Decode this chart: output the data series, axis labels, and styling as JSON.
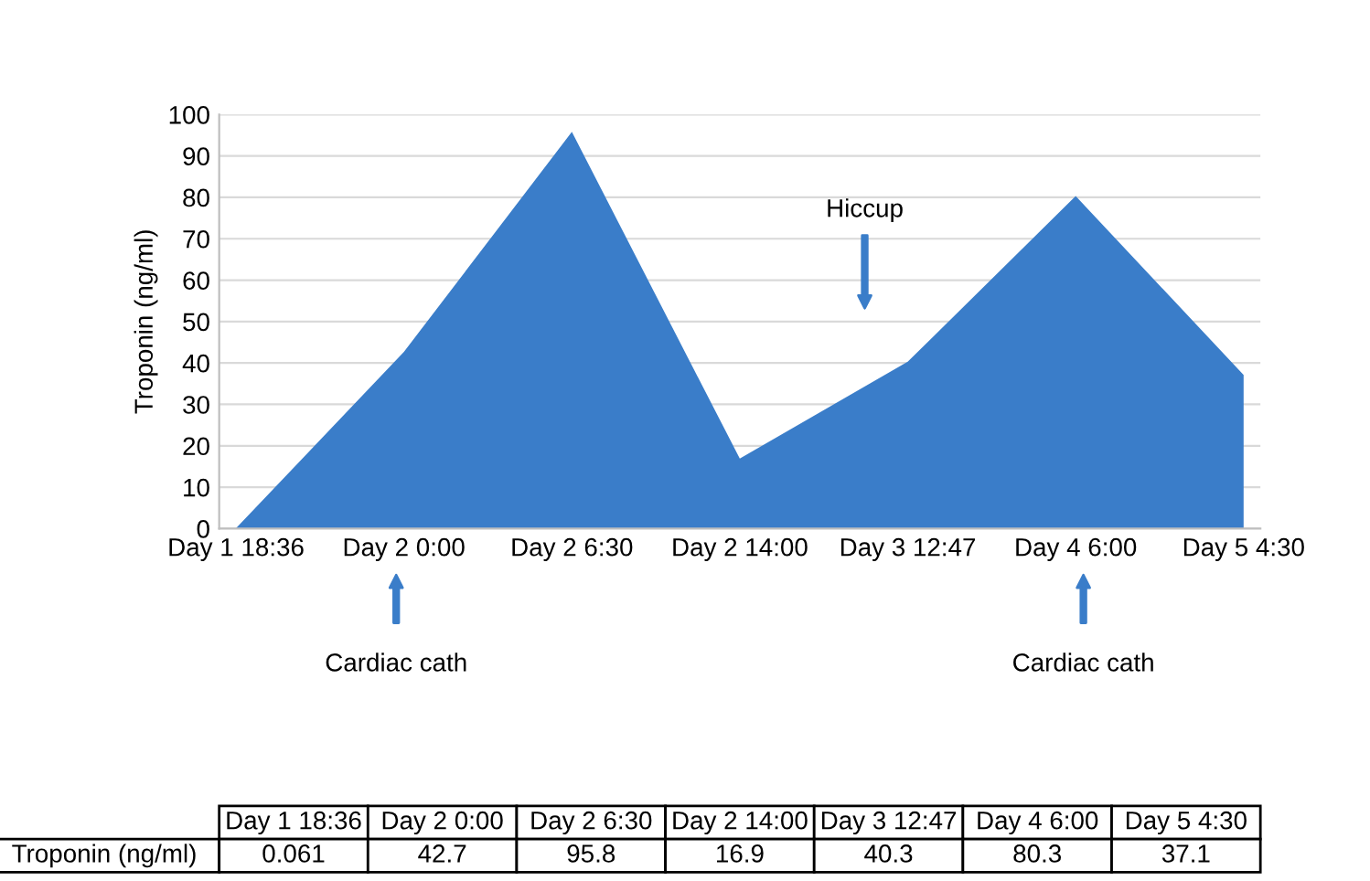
{
  "chart_data": {
    "type": "area",
    "ylabel": "Troponin (ng/ml)",
    "categories": [
      "Day 1 18:36",
      "Day 2 0:00",
      "Day 2 6:30",
      "Day 2 14:00",
      "Day 3 12:47",
      "Day 4 6:00",
      "Day 5 4:30"
    ],
    "series": [
      {
        "name": "Troponin (ng/ml)",
        "color": "#3a7dc9",
        "values": [
          0.061,
          42.7,
          95.8,
          16.9,
          40.3,
          80.3,
          37.1
        ]
      }
    ],
    "ylim": [
      0,
      100
    ],
    "yticks": [
      0,
      10,
      20,
      30,
      40,
      50,
      60,
      70,
      80,
      90,
      100
    ],
    "grid": "y",
    "data_labels": true,
    "annotations": [
      "Cardiac cath",
      "Hiccup",
      "Cardiac cath"
    ]
  }
}
